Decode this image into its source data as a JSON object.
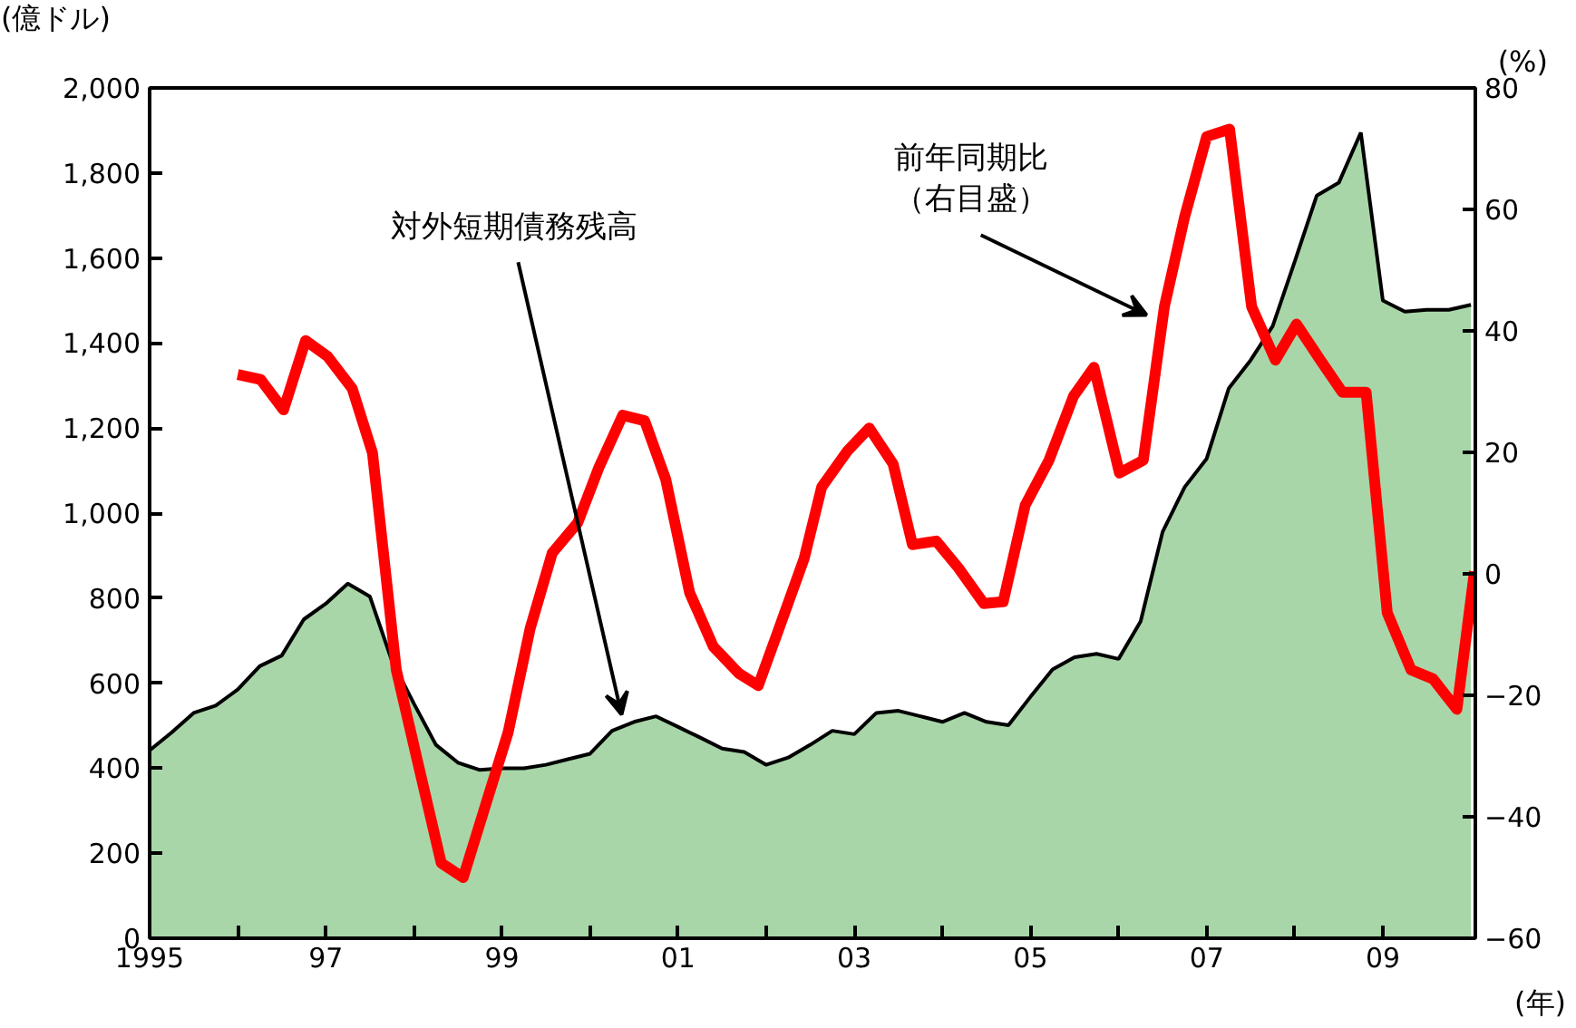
{
  "chart_data": {
    "type": "area",
    "ylabel": "(億ドル)",
    "y2label": "(%)",
    "xlabel": "(年)",
    "xlim": [
      1995,
      2010.05
    ],
    "ylim": [
      0,
      2000
    ],
    "y2lim": [
      -60,
      80
    ],
    "xticks": [
      {
        "value": 1995,
        "label": "1995"
      },
      {
        "value": 1996,
        "label": null
      },
      {
        "value": 1997,
        "label": "97"
      },
      {
        "value": 1998,
        "label": null
      },
      {
        "value": 1999,
        "label": "99"
      },
      {
        "value": 2000,
        "label": null
      },
      {
        "value": 2001,
        "label": "01"
      },
      {
        "value": 2002,
        "label": null
      },
      {
        "value": 2003,
        "label": "03"
      },
      {
        "value": 2004,
        "label": null
      },
      {
        "value": 2005,
        "label": "05"
      },
      {
        "value": 2006,
        "label": null
      },
      {
        "value": 2007,
        "label": "07"
      },
      {
        "value": 2008,
        "label": null
      },
      {
        "value": 2009,
        "label": "09"
      }
    ],
    "yticks": [
      0,
      200,
      400,
      600,
      800,
      {
        "value": 1000,
        "label": "1,000"
      },
      {
        "value": 1200,
        "label": "1,200"
      },
      {
        "value": 1400,
        "label": "1,400"
      },
      {
        "value": 1600,
        "label": "1,600"
      },
      {
        "value": 1800,
        "label": "1,800"
      },
      {
        "value": 2000,
        "label": "2,000"
      }
    ],
    "y2ticks": [
      -60,
      -40,
      -20,
      0,
      20,
      40,
      60,
      80
    ],
    "x": [
      1995,
      1995.25,
      1995.5,
      1995.75,
      1996,
      1996.25,
      1996.5,
      1996.75,
      1997,
      1997.25,
      1997.5,
      1997.75,
      1998,
      1998.25,
      1998.5,
      1998.75,
      1999,
      1999.25,
      1999.5,
      1999.75,
      2000,
      2000.25,
      2000.5,
      2000.75,
      2001,
      2001.25,
      2001.5,
      2001.75,
      2002,
      2002.25,
      2002.5,
      2002.75,
      2003,
      2003.25,
      2003.5,
      2003.75,
      2004,
      2004.25,
      2004.5,
      2004.75,
      2005,
      2005.25,
      2005.5,
      2005.75,
      2006,
      2006.25,
      2006.5,
      2006.75,
      2007,
      2007.25,
      2007.5,
      2007.75,
      2008,
      2008.25,
      2008.5,
      2008.75,
      2009,
      2009.25,
      2009.5,
      2009.75,
      2010
    ],
    "series": [
      {
        "color": "#a9d6a9",
        "values": [
          442,
          484,
          530,
          547,
          585,
          640,
          665,
          750,
          787,
          834,
          804,
          653,
          552,
          455,
          413,
          396,
          400,
          400,
          408,
          421,
          434,
          488,
          509,
          522,
          497,
          472,
          446,
          438,
          408,
          425,
          455,
          488,
          480,
          530,
          535,
          522,
          509,
          530,
          509,
          501,
          568,
          632,
          661,
          669,
          657,
          745,
          956,
          1061,
          1128,
          1293,
          1360,
          1440,
          1592,
          1747,
          1777,
          1895,
          1500,
          1474,
          1478,
          1478,
          1490
        ]
      },
      {
        "type": "line",
        "axis": "y2",
        "color": "#ff0000",
        "x": [
          1996.0,
          1996.26,
          1996.52,
          1996.77,
          1997.02,
          1997.3,
          1997.53,
          1997.8,
          1998.05,
          1998.31,
          1998.56,
          1998.83,
          1999.07,
          1999.32,
          1999.57,
          1999.86,
          2000.1,
          2000.37,
          2000.62,
          2000.86,
          2001.13,
          2001.4,
          2001.69,
          2001.91,
          2002.16,
          2002.43,
          2002.63,
          2002.92,
          2003.17,
          2003.44,
          2003.66,
          2003.93,
          2004.18,
          2004.47,
          2004.69,
          2004.94,
          2005.21,
          2005.49,
          2005.72,
          2006.01,
          2006.28,
          2006.52,
          2006.75,
          2007.0,
          2007.26,
          2007.51,
          2007.78,
          2008.02,
          2008.29,
          2008.54,
          2008.81,
          2009.05,
          2009.32,
          2009.57,
          2009.84,
          2010.04
        ],
        "values": [
          32.8,
          32,
          27,
          38.4,
          35.8,
          30.5,
          19.9,
          -15.8,
          -31.4,
          -47.6,
          -50,
          -37.3,
          -26.1,
          -9,
          3.4,
          8.4,
          17.5,
          26.1,
          25.2,
          15.5,
          -3.1,
          -12,
          -16.4,
          -18.4,
          -8.4,
          2.5,
          14.3,
          20.2,
          24,
          18.1,
          4.8,
          5.4,
          1,
          -4.9,
          -4.6,
          11.3,
          18.7,
          29.3,
          34,
          16.6,
          18.7,
          44,
          58.8,
          72,
          73.2,
          44,
          35.2,
          41.1,
          35.2,
          29.9,
          29.9,
          -6.4,
          -15.8,
          -17.3,
          -22.3,
          0.4
        ]
      }
    ],
    "annotations": [
      "対外短期債務残高",
      "前年同期比",
      "（右目盛）"
    ],
    "grid": false
  }
}
